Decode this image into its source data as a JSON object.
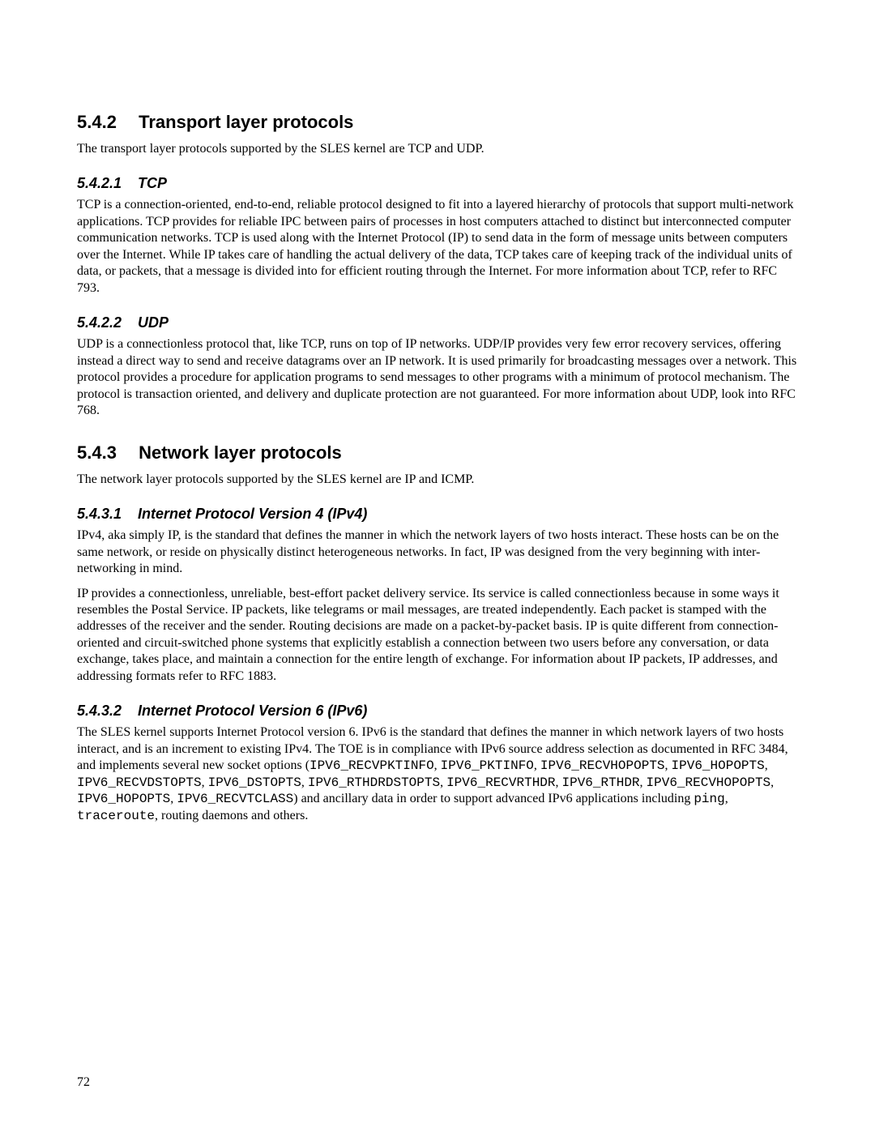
{
  "sections": {
    "s542": {
      "num": "5.4.2",
      "title": "Transport layer protocols"
    },
    "s5421": {
      "num": "5.4.2.1",
      "title": "TCP"
    },
    "s5422": {
      "num": "5.4.2.2",
      "title": "UDP"
    },
    "s543": {
      "num": "5.4.3",
      "title": "Network layer protocols"
    },
    "s5431": {
      "num": "5.4.3.1",
      "title": "Internet Protocol Version 4 (IPv4)"
    },
    "s5432": {
      "num": "5.4.3.2",
      "title": "Internet Protocol Version 6 (IPv6)"
    }
  },
  "paragraphs": {
    "p542": "The transport layer protocols supported by the SLES kernel are TCP and UDP.",
    "p5421": "TCP is a connection-oriented, end-to-end, reliable protocol designed to fit into a layered hierarchy of protocols that support multi-network applications.  TCP provides for reliable IPC  between pairs of processes in host computers attached to distinct but interconnected computer communication networks.  TCP is used along with the Internet Protocol (IP) to send data in the form of message units between computers over the Internet.  While IP takes care of handling the actual delivery of the data, TCP takes care of keeping track of the individual units of data, or packets, that a message is divided into for efficient routing through the Internet.  For more information about TCP, refer to RFC 793.",
    "p5422": "UDP is a connectionless protocol that, like TCP, runs on top of IP networks.  UDP/IP provides very few error recovery services, offering instead a direct way to send and receive datagrams over an IP network.  It is used primarily for broadcasting messages over a network. This protocol provides a procedure for application programs to send messages to other programs with a minimum of protocol mechanism.  The protocol is transaction oriented, and delivery and duplicate protection are not guaranteed.  For more information about UDP, look into RFC 768.",
    "p543": "The network layer protocols supported by the SLES kernel are IP and ICMP.",
    "p5431a": "IPv4, aka simply IP, is the standard that defines the manner in which the network layers of two hosts interact. These hosts can be on the same network, or reside on physically distinct heterogeneous networks. In fact, IP was designed from the very beginning with inter-networking in mind.",
    "p5431b": "IP provides a connectionless, unreliable, best-effort packet delivery service.  Its service is called connectionless because in some ways it resembles the Postal Service.  IP packets, like telegrams or mail messages, are treated independently.  Each packet is stamped with the addresses of the receiver and the sender.  Routing decisions are made on a packet-by-packet basis.  IP is quite different from connection-oriented and circuit-switched phone systems that explicitly establish a connection between two users before any conversation, or data exchange, takes place, and maintain a connection for the entire length of exchange. For information about IP packets, IP addresses, and addressing formats refer to RFC 1883.",
    "p5432_pre": "The SLES kernel supports Internet Protocol version 6.  IPv6 is the standard that defines the manner in which network layers of two hosts interact, and is an increment to existing IPv4.  The TOE is in compliance with IPv6 source address selection as documented in RFC 3484, and implements several new socket options (",
    "p5432_code1": "IPV6_RECVPKTINFO",
    "p5432_sep_cs": ", ",
    "p5432_code2": "IPV6_PKTINFO",
    "p5432_code3": "IPV6_RECVHOPOPTS",
    "p5432_code4": "IPV6_HOPOPTS",
    "p5432_code5": "IPV6_RECVDSTOPTS",
    "p5432_code6": "IPV6_DSTOPTS",
    "p5432_code7": "IPV6_RTHDRDSTOPTS",
    "p5432_code8": "IPV6_RECVRTHDR",
    "p5432_code9": "IPV6_RTHDR",
    "p5432_code10": "IPV6_RECVHOPOPTS",
    "p5432_code11": "IPV6_HOPOPTS",
    "p5432_code12": "IPV6_RECVTCLASS",
    "p5432_mid1": ") and ancillary data in order to support advanced IPv6 applications including ",
    "p5432_ping": "ping",
    "p5432_tr": "traceroute",
    "p5432_tail": ", routing daemons and others."
  },
  "page_number": "72"
}
